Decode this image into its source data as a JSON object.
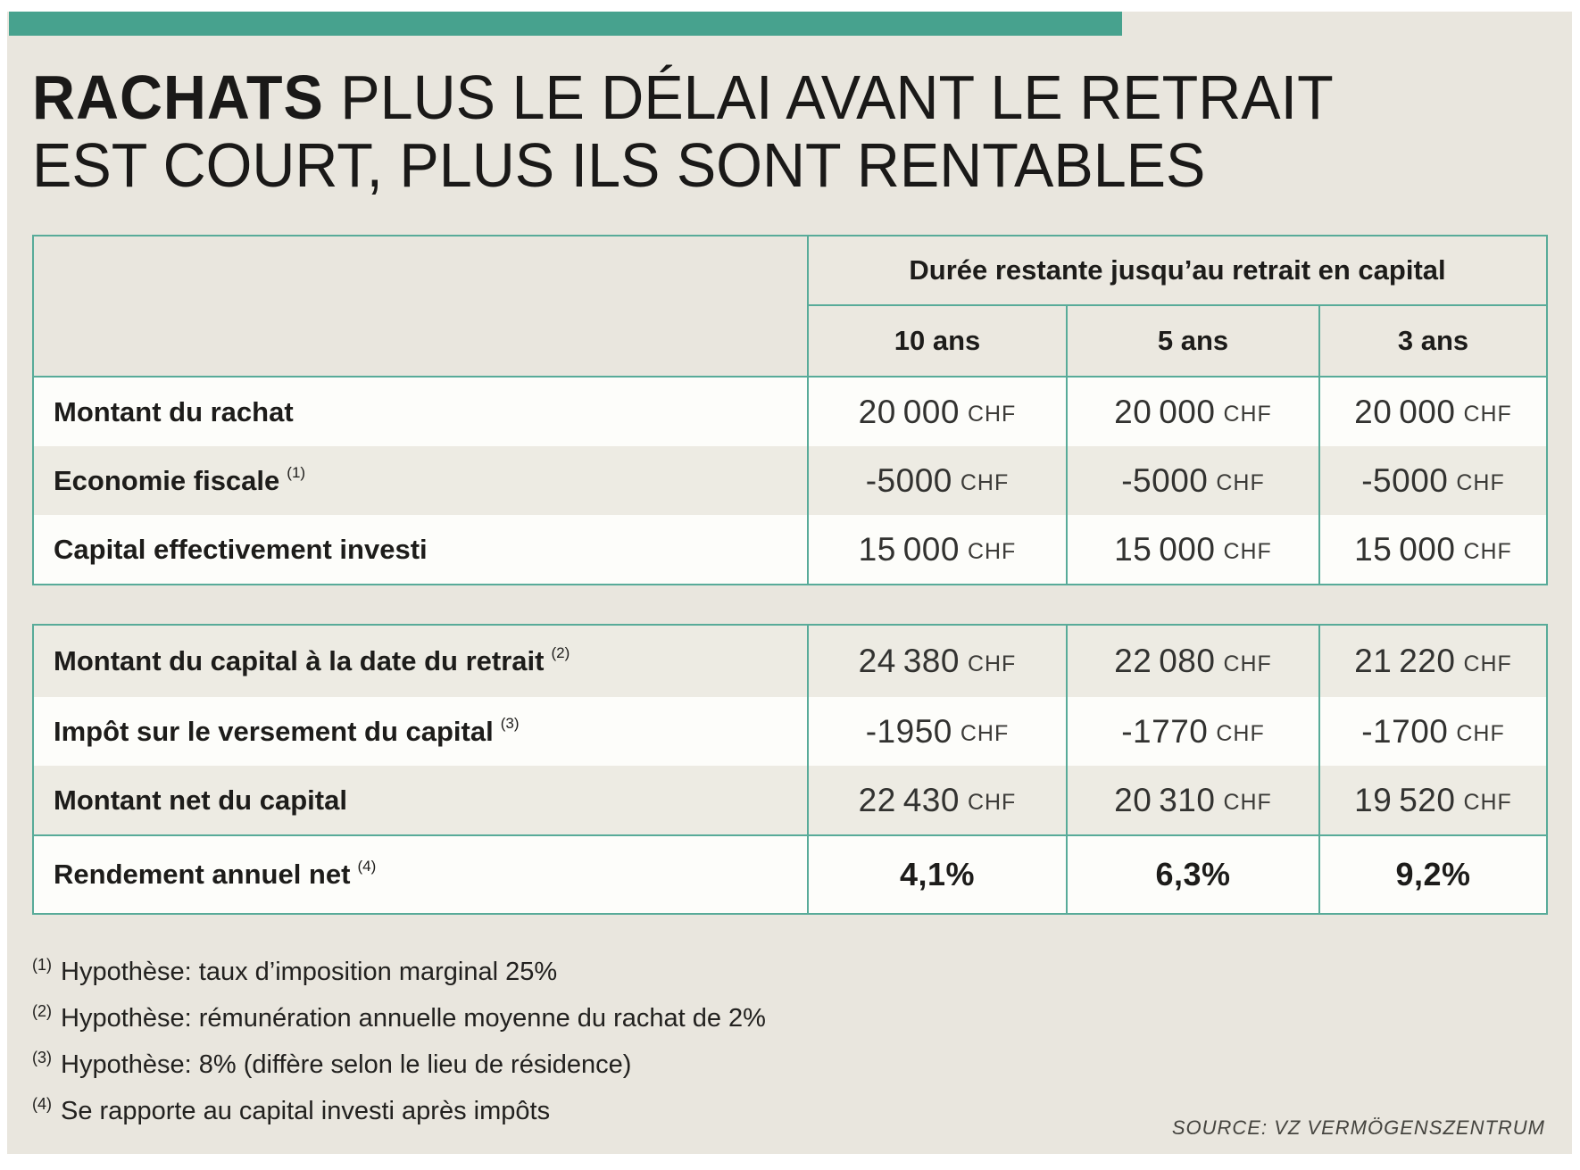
{
  "header": {
    "title_strong": "RACHATS",
    "title_rest_line1": "PLUS LE DÉLAI AVANT LE RETRAIT",
    "title_line2": "EST COURT, PLUS ILS SONT RENTABLES"
  },
  "table": {
    "group_header": "Durée restante jusqu’au retrait en capital",
    "columns": [
      "10 ans",
      "5 ans",
      "3 ans"
    ],
    "block1": [
      {
        "label": "Montant du rachat",
        "sup": "",
        "values": [
          "20 000",
          "20 000",
          "20 000"
        ],
        "unit": "CHF"
      },
      {
        "label": "Economie fiscale",
        "sup": "(1)",
        "values": [
          "-5000",
          "-5000",
          "-5000"
        ],
        "unit": "CHF"
      },
      {
        "label": "Capital effectivement investi",
        "sup": "",
        "values": [
          "15 000",
          "15 000",
          "15 000"
        ],
        "unit": "CHF"
      }
    ],
    "block2": [
      {
        "label": "Montant du capital à la date du retrait",
        "sup": "(2)",
        "values": [
          "24 380",
          "22 080",
          "21 220"
        ],
        "unit": "CHF"
      },
      {
        "label": "Impôt sur le versement du capital",
        "sup": "(3)",
        "values": [
          "-1950",
          "-1770",
          "-1700"
        ],
        "unit": "CHF"
      },
      {
        "label": "Montant net du capital",
        "sup": "",
        "values": [
          "22 430",
          "20 310",
          "19 520"
        ],
        "unit": "CHF"
      },
      {
        "label": "Rendement annuel net",
        "sup": "(4)",
        "values": [
          "4,1%",
          "6,3%",
          "9,2%"
        ],
        "unit": ""
      }
    ]
  },
  "footnotes": [
    {
      "marker": "(1)",
      "text": "Hypothèse: taux d’imposition marginal 25%"
    },
    {
      "marker": "(2)",
      "text": "Hypothèse: rémunération annuelle moyenne du rachat de 2%"
    },
    {
      "marker": "(3)",
      "text": "Hypothèse: 8% (diffère selon le lieu de résidence)"
    },
    {
      "marker": "(4)",
      "text": "Se rapporte au capital investi après impôts"
    }
  ],
  "footer": {
    "source": "SOURCE: VZ VERMÖGENSZENTRUM"
  },
  "colors": {
    "accent_teal": "#47a28e",
    "table_border": "#58ab99",
    "panel_beige": "#e9e6de",
    "row_gray": "#edebe3",
    "row_white": "#fdfdfa"
  },
  "chart_data": {
    "type": "table",
    "title": "RACHATS — Plus le délai avant le retrait est court, plus ils sont rentables",
    "column_group_label": "Durée restante jusqu'au retrait en capital",
    "columns": [
      "10 ans",
      "5 ans",
      "3 ans"
    ],
    "unit": "CHF",
    "rows": [
      {
        "label": "Montant du rachat",
        "values": [
          20000,
          20000,
          20000
        ],
        "unit": "CHF"
      },
      {
        "label": "Economie fiscale (1)",
        "values": [
          -5000,
          -5000,
          -5000
        ],
        "unit": "CHF"
      },
      {
        "label": "Capital effectivement investi",
        "values": [
          15000,
          15000,
          15000
        ],
        "unit": "CHF"
      },
      {
        "label": "Montant du capital à la date du retrait (2)",
        "values": [
          24380,
          22080,
          21220
        ],
        "unit": "CHF"
      },
      {
        "label": "Impôt sur le versement du capital (3)",
        "values": [
          -1950,
          -1770,
          -1700
        ],
        "unit": "CHF"
      },
      {
        "label": "Montant net du capital",
        "values": [
          22430,
          20310,
          19520
        ],
        "unit": "CHF"
      },
      {
        "label": "Rendement annuel net (4)",
        "values": [
          4.1,
          6.3,
          9.2
        ],
        "unit": "%"
      }
    ],
    "footnotes": [
      "Hypothèse: taux d'imposition marginal 25%",
      "Hypothèse: rémunération annuelle moyenne du rachat de 2%",
      "Hypothèse: 8% (diffère selon le lieu de résidence)",
      "Se rapporte au capital investi après impôts"
    ],
    "source": "VZ Vermögenszentrum"
  }
}
